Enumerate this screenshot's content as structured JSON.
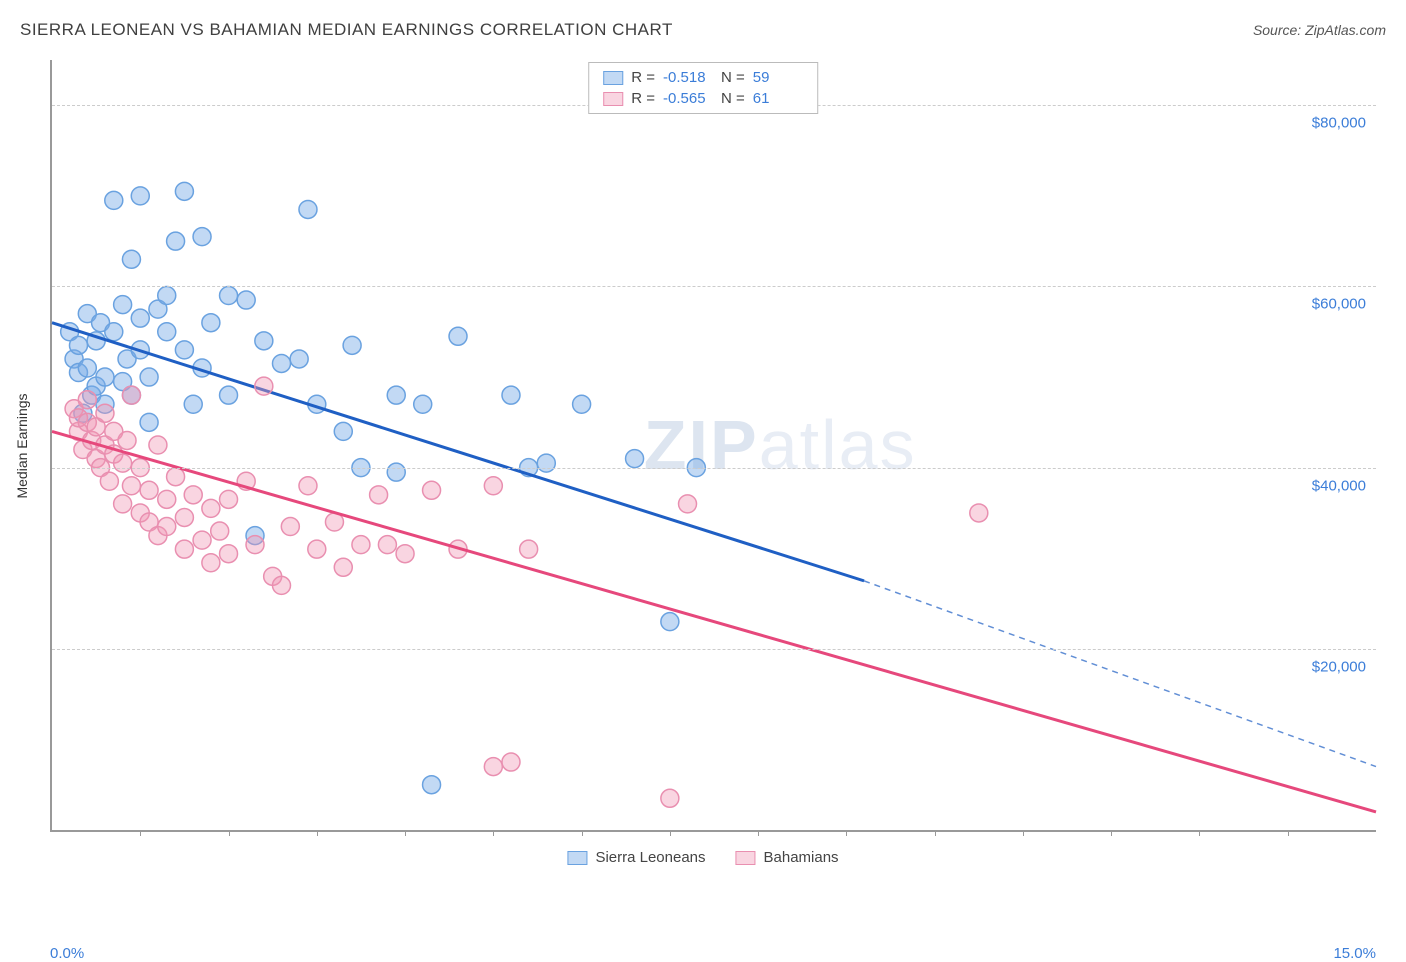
{
  "title": "SIERRA LEONEAN VS BAHAMIAN MEDIAN EARNINGS CORRELATION CHART",
  "source_label": "Source: ZipAtlas.com",
  "watermark": "ZIPatlas",
  "ylabel": "Median Earnings",
  "chart": {
    "type": "scatter",
    "xlim": [
      0,
      15
    ],
    "ylim": [
      0,
      85000
    ],
    "x_tick_step_pct": 1,
    "x_min_label": "0.0%",
    "x_max_label": "15.0%",
    "y_ticks": [
      20000,
      40000,
      60000,
      80000
    ],
    "y_tick_labels": [
      "$20,000",
      "$40,000",
      "$60,000",
      "$80,000"
    ],
    "background_color": "#ffffff",
    "grid_color": "#cccccc",
    "axis_color": "#999999",
    "series": [
      {
        "name": "Sierra Leoneans",
        "color_fill": "rgba(120,170,230,0.45)",
        "color_stroke": "#6aa2e0",
        "trend_color": "#1f5fc4",
        "R": "-0.518",
        "N": "59",
        "trend_start": [
          0,
          56000
        ],
        "trend_solid_end": [
          9.2,
          27500
        ],
        "trend_dash_end": [
          15,
          7000
        ],
        "points": [
          [
            0.2,
            55000
          ],
          [
            0.25,
            52000
          ],
          [
            0.3,
            50500
          ],
          [
            0.3,
            53500
          ],
          [
            0.35,
            46000
          ],
          [
            0.4,
            57000
          ],
          [
            0.4,
            51000
          ],
          [
            0.45,
            48000
          ],
          [
            0.5,
            54000
          ],
          [
            0.5,
            49000
          ],
          [
            0.55,
            56000
          ],
          [
            0.6,
            50000
          ],
          [
            0.6,
            47000
          ],
          [
            0.7,
            55000
          ],
          [
            0.7,
            69500
          ],
          [
            0.8,
            58000
          ],
          [
            0.8,
            49500
          ],
          [
            0.85,
            52000
          ],
          [
            0.9,
            63000
          ],
          [
            0.9,
            48000
          ],
          [
            1.0,
            70000
          ],
          [
            1.0,
            56500
          ],
          [
            1.0,
            53000
          ],
          [
            1.1,
            50000
          ],
          [
            1.1,
            45000
          ],
          [
            1.2,
            57500
          ],
          [
            1.3,
            55000
          ],
          [
            1.3,
            59000
          ],
          [
            1.4,
            65000
          ],
          [
            1.5,
            70500
          ],
          [
            1.5,
            53000
          ],
          [
            1.6,
            47000
          ],
          [
            1.7,
            65500
          ],
          [
            1.7,
            51000
          ],
          [
            1.8,
            56000
          ],
          [
            2.0,
            59000
          ],
          [
            2.0,
            48000
          ],
          [
            2.2,
            58500
          ],
          [
            2.3,
            32500
          ],
          [
            2.4,
            54000
          ],
          [
            2.6,
            51500
          ],
          [
            2.8,
            52000
          ],
          [
            2.9,
            68500
          ],
          [
            3.0,
            47000
          ],
          [
            3.3,
            44000
          ],
          [
            3.4,
            53500
          ],
          [
            3.5,
            40000
          ],
          [
            3.9,
            48000
          ],
          [
            3.9,
            39500
          ],
          [
            4.2,
            47000
          ],
          [
            4.6,
            54500
          ],
          [
            5.2,
            48000
          ],
          [
            5.4,
            40000
          ],
          [
            5.6,
            40500
          ],
          [
            6.0,
            47000
          ],
          [
            6.6,
            41000
          ],
          [
            7.0,
            23000
          ],
          [
            4.3,
            5000
          ],
          [
            7.3,
            40000
          ]
        ]
      },
      {
        "name": "Bahamians",
        "color_fill": "rgba(240,150,180,0.4)",
        "color_stroke": "#e98fb0",
        "trend_color": "#e6487c",
        "R": "-0.565",
        "N": "61",
        "trend_start": [
          0,
          44000
        ],
        "trend_solid_end": [
          15,
          2000
        ],
        "trend_dash_end": null,
        "points": [
          [
            0.25,
            46500
          ],
          [
            0.3,
            44000
          ],
          [
            0.3,
            45500
          ],
          [
            0.35,
            42000
          ],
          [
            0.4,
            45000
          ],
          [
            0.4,
            47500
          ],
          [
            0.45,
            43000
          ],
          [
            0.5,
            41000
          ],
          [
            0.5,
            44500
          ],
          [
            0.55,
            40000
          ],
          [
            0.6,
            42500
          ],
          [
            0.6,
            46000
          ],
          [
            0.65,
            38500
          ],
          [
            0.7,
            41500
          ],
          [
            0.7,
            44000
          ],
          [
            0.8,
            36000
          ],
          [
            0.8,
            40500
          ],
          [
            0.85,
            43000
          ],
          [
            0.9,
            38000
          ],
          [
            0.9,
            48000
          ],
          [
            1.0,
            35000
          ],
          [
            1.0,
            40000
          ],
          [
            1.1,
            34000
          ],
          [
            1.1,
            37500
          ],
          [
            1.2,
            32500
          ],
          [
            1.2,
            42500
          ],
          [
            1.3,
            36500
          ],
          [
            1.3,
            33500
          ],
          [
            1.4,
            39000
          ],
          [
            1.5,
            34500
          ],
          [
            1.5,
            31000
          ],
          [
            1.6,
            37000
          ],
          [
            1.7,
            32000
          ],
          [
            1.8,
            29500
          ],
          [
            1.8,
            35500
          ],
          [
            1.9,
            33000
          ],
          [
            2.0,
            30500
          ],
          [
            2.0,
            36500
          ],
          [
            2.2,
            38500
          ],
          [
            2.3,
            31500
          ],
          [
            2.4,
            49000
          ],
          [
            2.5,
            28000
          ],
          [
            2.6,
            27000
          ],
          [
            2.7,
            33500
          ],
          [
            2.9,
            38000
          ],
          [
            3.0,
            31000
          ],
          [
            3.2,
            34000
          ],
          [
            3.3,
            29000
          ],
          [
            3.5,
            31500
          ],
          [
            3.7,
            37000
          ],
          [
            3.8,
            31500
          ],
          [
            4.0,
            30500
          ],
          [
            4.3,
            37500
          ],
          [
            4.6,
            31000
          ],
          [
            5.0,
            38000
          ],
          [
            5.4,
            31000
          ],
          [
            7.2,
            36000
          ],
          [
            10.5,
            35000
          ],
          [
            5.0,
            7000
          ],
          [
            5.2,
            7500
          ],
          [
            7.0,
            3500
          ]
        ]
      }
    ]
  },
  "legend_bottom": [
    {
      "label": "Sierra Leoneans",
      "fill": "rgba(120,170,230,0.45)",
      "stroke": "#6aa2e0"
    },
    {
      "label": "Bahamians",
      "fill": "rgba(240,150,180,0.4)",
      "stroke": "#e98fb0"
    }
  ]
}
